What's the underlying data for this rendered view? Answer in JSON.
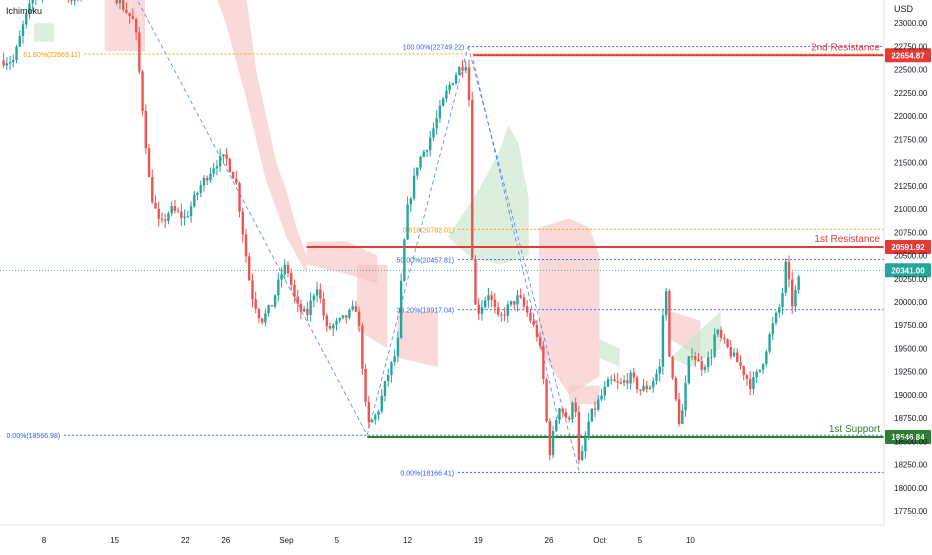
{
  "indicator_label": "Ichimoku",
  "currency": "USD",
  "colors": {
    "up": "#26a69a",
    "down": "#ef5350",
    "resistance": "#e53935",
    "support": "#2e7d32",
    "fib_blue": "#2962ff",
    "fib_orange": "#f59b00",
    "cloud_red": "#f8c4c4",
    "cloud_green": "#c8e6c9",
    "current_price": "#26a69a"
  },
  "chart_data": {
    "type": "candlestick",
    "y_axis": {
      "range": [
        17600,
        23250
      ],
      "ticks": [
        "23000.00",
        "22750.00",
        "22500.00",
        "22250.00",
        "22000.00",
        "21750.00",
        "21500.00",
        "21250.00",
        "21000.00",
        "20750.00",
        "20500.00",
        "20250.00",
        "20000.00",
        "19750.00",
        "19500.00",
        "19250.00",
        "19000.00",
        "18750.00",
        "18500.00",
        "18250.00",
        "18000.00",
        "17750.00"
      ]
    },
    "x_axis": {
      "ticks": [
        {
          "label": "8",
          "day": 0
        },
        {
          "label": "15",
          "day": 7
        },
        {
          "label": "22",
          "day": 14
        },
        {
          "label": "26",
          "day": 18
        },
        {
          "label": "Sep",
          "day": 24
        },
        {
          "label": "5",
          "day": 29
        },
        {
          "label": "12",
          "day": 36
        },
        {
          "label": "19",
          "day": 43
        },
        {
          "label": "26",
          "day": 50
        },
        {
          "label": "Oct",
          "day": 55
        },
        {
          "label": "5",
          "day": 59
        },
        {
          "label": "10",
          "day": 64
        }
      ]
    },
    "price_path": [
      [
        -3,
        22600
      ],
      [
        -2,
        23000
      ],
      [
        -1,
        23300
      ],
      [
        1,
        23400
      ],
      [
        3,
        23250
      ],
      [
        5,
        23500
      ],
      [
        7,
        23300
      ],
      [
        9,
        23000
      ],
      [
        10.5,
        21200
      ],
      [
        11.5,
        20800
      ],
      [
        12.5,
        21000
      ],
      [
        14,
        20900
      ],
      [
        15.5,
        21250
      ],
      [
        17,
        21500
      ],
      [
        18,
        21550
      ],
      [
        19,
        21300
      ],
      [
        20,
        20500
      ],
      [
        20.5,
        20100
      ],
      [
        21.5,
        19800
      ],
      [
        22.5,
        19950
      ],
      [
        23.5,
        20300
      ],
      [
        24,
        20400
      ],
      [
        25,
        19950
      ],
      [
        26,
        19850
      ],
      [
        27,
        20200
      ],
      [
        28,
        19700
      ],
      [
        29.5,
        19800
      ],
      [
        31,
        19950
      ],
      [
        31.5,
        19350
      ],
      [
        32,
        18650
      ],
      [
        33,
        18800
      ],
      [
        34,
        19200
      ],
      [
        35,
        19500
      ],
      [
        35.5,
        20450
      ],
      [
        36,
        21000
      ],
      [
        37,
        21500
      ],
      [
        38,
        21700
      ],
      [
        39,
        22000
      ],
      [
        40,
        22300
      ],
      [
        41,
        22500
      ],
      [
        42,
        22600
      ],
      [
        42.5,
        20000
      ],
      [
        43,
        19900
      ],
      [
        44,
        20100
      ],
      [
        45,
        19800
      ],
      [
        46,
        19950
      ],
      [
        47,
        20050
      ],
      [
        48,
        19850
      ],
      [
        49,
        19600
      ],
      [
        49.5,
        19100
      ],
      [
        50,
        18350
      ],
      [
        51,
        18900
      ],
      [
        52,
        18700
      ],
      [
        52.5,
        19100
      ],
      [
        53,
        18200
      ],
      [
        54,
        18750
      ],
      [
        55,
        18950
      ],
      [
        56,
        19150
      ],
      [
        57,
        19100
      ],
      [
        58,
        19200
      ],
      [
        59,
        19050
      ],
      [
        60,
        19100
      ],
      [
        61,
        19300
      ],
      [
        61.5,
        20300
      ],
      [
        62,
        19300
      ],
      [
        63,
        18650
      ],
      [
        64,
        19500
      ],
      [
        65,
        19300
      ],
      [
        66,
        19400
      ],
      [
        66.5,
        19700
      ],
      [
        67,
        19600
      ],
      [
        68,
        19450
      ],
      [
        69,
        19300
      ],
      [
        70,
        19100
      ],
      [
        71,
        19300
      ],
      [
        72,
        19700
      ],
      [
        73,
        20000
      ],
      [
        73.5,
        20450
      ],
      [
        74,
        19950
      ],
      [
        75,
        20341
      ]
    ],
    "current_price": 20341.0,
    "current_price_label": "20341.00",
    "levels": [
      {
        "name": "2nd Resistance",
        "value": 22654.87,
        "value_label": "22654.87",
        "role": "resistance",
        "x_from_day": 42.5
      },
      {
        "name": "1st Resistance",
        "value": 20591.92,
        "value_label": "20591.92",
        "role": "resistance",
        "x_from_day": 26
      },
      {
        "name": "1st Support",
        "value": 18546.84,
        "value_label": "18546.84",
        "role": "support",
        "x_from_day": 32
      }
    ],
    "fibonacci": [
      {
        "label": "100.00%(22749.22)",
        "value": 22749.22,
        "color": "blue",
        "x_from_day": 42
      },
      {
        "label": "61.80%(22669.11)",
        "value": 22669.11,
        "color": "orange",
        "x_from_day": 4
      },
      {
        "label": "0.618(20782.01)",
        "value": 20782.01,
        "color": "orange",
        "x_from_day": 41
      },
      {
        "label": "50.00%(20457.81)",
        "value": 20457.81,
        "color": "blue",
        "x_from_day": 41
      },
      {
        "label": "38.20%(19917.04)",
        "value": 19917.04,
        "color": "blue",
        "x_from_day": 41
      },
      {
        "label": "0.00%(18566.98)",
        "value": 18566.98,
        "color": "blue",
        "x_from_day": 2
      },
      {
        "label": "0.00%(18166.41)",
        "value": 18166.41,
        "color": "blue",
        "x_from_day": 41
      }
    ]
  }
}
